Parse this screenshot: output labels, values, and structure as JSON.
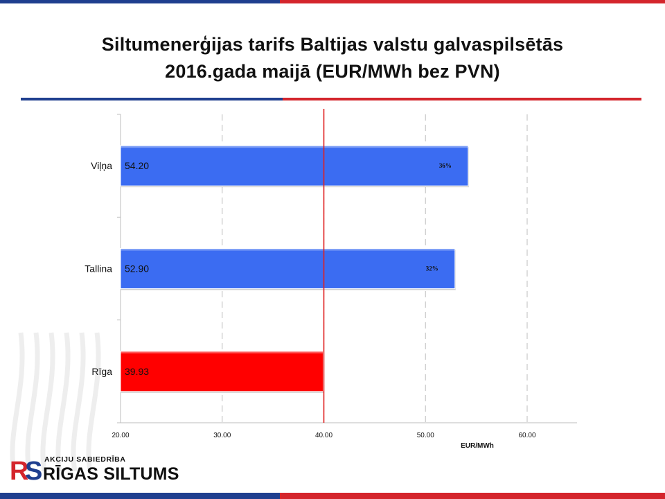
{
  "title": {
    "line1": "Siltumenerģijas tarifs Baltijas valstu galvaspilsētās",
    "line2": "2016.gada maijā (EUR/MWh bez PVN)"
  },
  "colors": {
    "brand_blue": "#1f3f8f",
    "brand_red": "#d4252c",
    "bar_blue": "#3b6cf2",
    "bar_red": "#ff0000",
    "reference_line": "#e02020"
  },
  "chart_data": {
    "type": "bar",
    "orientation": "horizontal",
    "categories": [
      "Viļņa",
      "Tallina",
      "Rīga"
    ],
    "values": [
      54.2,
      52.9,
      39.93
    ],
    "value_labels": [
      "54.20",
      "52.90",
      "39.93"
    ],
    "percent_labels": [
      "36%",
      "32%",
      ""
    ],
    "bar_colors": [
      "#3b6cf2",
      "#3b6cf2",
      "#ff0000"
    ],
    "xlim": [
      20,
      65
    ],
    "x_ticks": [
      20,
      30,
      40,
      50,
      60
    ],
    "x_tick_labels": [
      "20.00",
      "30.00",
      "40.00",
      "50.00",
      "60.00"
    ],
    "xlabel": "EUR/MWh",
    "ylabel": "",
    "reference_line": 40,
    "grid": "vertical dashed"
  },
  "logo": {
    "small_text": "AKCIJU SABIEDRĪBA",
    "big_text": "RĪGAS SILTUMS",
    "mark_text": "RS"
  }
}
